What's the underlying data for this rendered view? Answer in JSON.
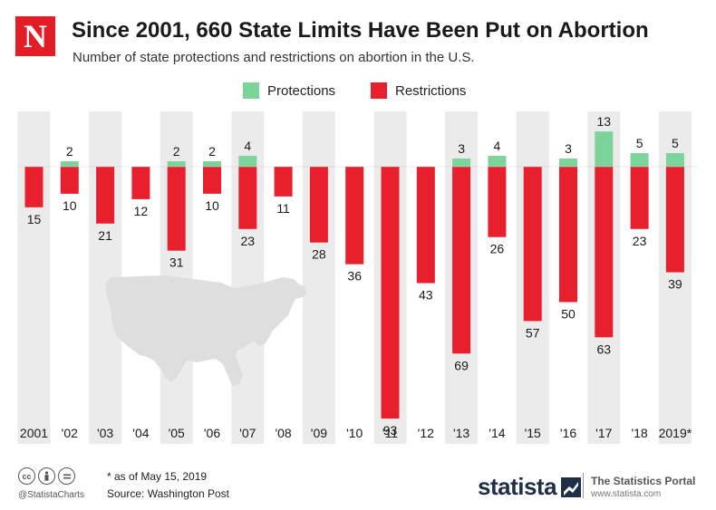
{
  "header": {
    "logo_letter": "N",
    "title": "Since 2001, 660 State Limits Have Been Put on Abortion",
    "subtitle": "Number of state protections and restrictions on abortion in the U.S."
  },
  "colors": {
    "protections": "#7dd49b",
    "restrictions": "#e8202e",
    "column_bg": "#ebebeb",
    "map": "#dedede",
    "brand": "#e21d26"
  },
  "chart_data": {
    "type": "bar",
    "title": "Since 2001, 660 State Limits Have Been Put on Abortion",
    "subtitle": "Number of state protections and restrictions on abortion in the U.S.",
    "categories": [
      "2001",
      "'02",
      "'03",
      "'04",
      "'05",
      "'06",
      "'07",
      "'08",
      "'09",
      "'10",
      "'11",
      "'12",
      "'13",
      "'14",
      "'15",
      "'16",
      "'17",
      "'18",
      "2019*"
    ],
    "series": [
      {
        "name": "Protections",
        "values": [
          0,
          2,
          0,
          0,
          2,
          2,
          4,
          0,
          0,
          0,
          0,
          0,
          3,
          4,
          0,
          3,
          13,
          5,
          5
        ]
      },
      {
        "name": "Restrictions",
        "values": [
          15,
          10,
          21,
          12,
          31,
          10,
          23,
          11,
          28,
          36,
          93,
          43,
          69,
          26,
          57,
          50,
          63,
          23,
          39
        ]
      }
    ],
    "layout": "diverging bars: protections above baseline, restrictions below",
    "legend_position": "top-center",
    "xlabel": "",
    "ylabel": ""
  },
  "footer": {
    "cc_icons": [
      "cc",
      "by",
      "nd"
    ],
    "handle": "@StatistaCharts",
    "note": "* as of May 15, 2019",
    "source": "Source: Washington Post",
    "brand_name": "statista",
    "portal_title": "The Statistics Portal",
    "portal_url": "www.statista.com"
  }
}
